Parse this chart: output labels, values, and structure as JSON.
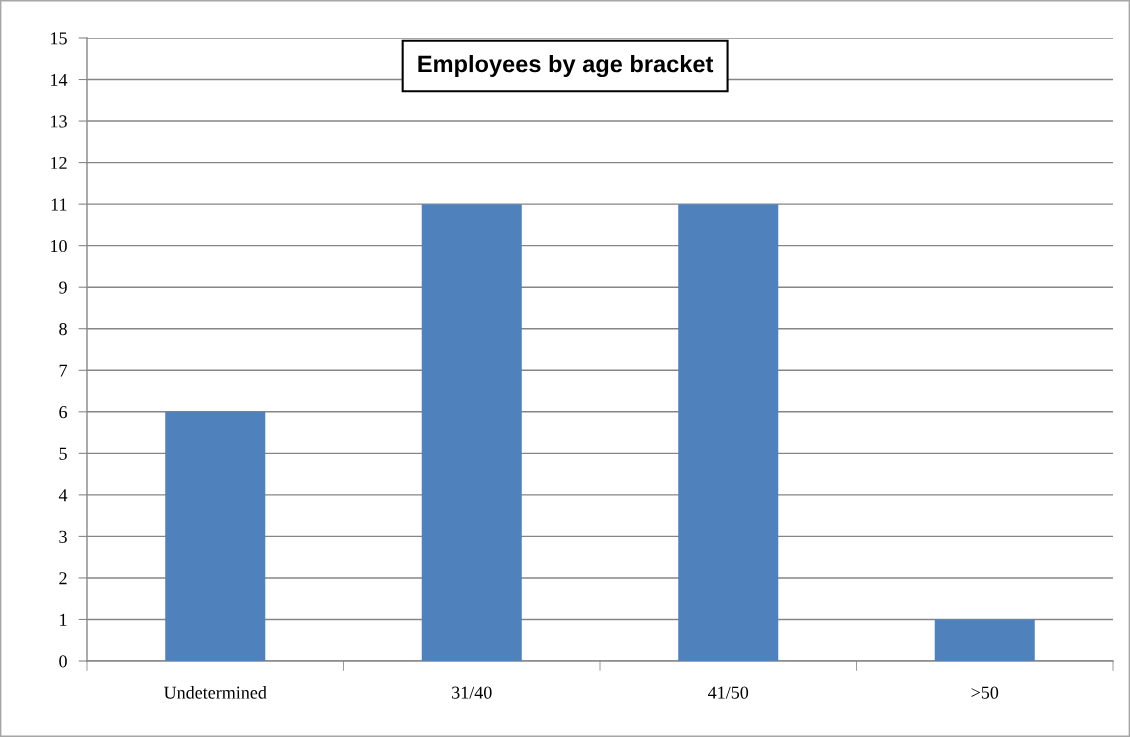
{
  "chart_data": {
    "type": "bar",
    "title": "Employees by age bracket",
    "categories": [
      "Undetermined",
      "31/40",
      "41/50",
      ">50"
    ],
    "values": [
      6,
      11,
      11,
      1
    ],
    "color": "#4f81bd",
    "ylim": [
      0,
      15
    ],
    "yticks": [
      0,
      1,
      2,
      3,
      4,
      5,
      6,
      7,
      8,
      9,
      10,
      11,
      12,
      13,
      14,
      15
    ],
    "grid": "y",
    "legend": false
  }
}
